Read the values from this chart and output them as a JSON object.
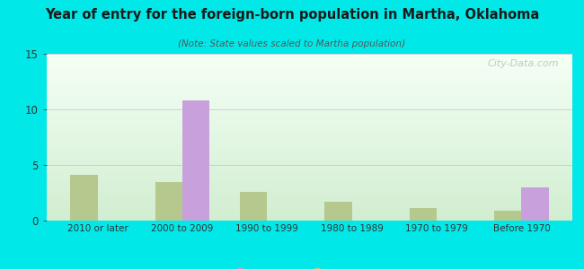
{
  "title": "Year of entry for the foreign-born population in Martha, Oklahoma",
  "subtitle": "(Note: State values scaled to Martha population)",
  "categories": [
    "2010 or later",
    "2000 to 2009",
    "1990 to 1999",
    "1980 to 1989",
    "1970 to 1979",
    "Before 1970"
  ],
  "martha_values": [
    0,
    10.8,
    0,
    0,
    0,
    3.0
  ],
  "oklahoma_values": [
    4.1,
    3.5,
    2.6,
    1.7,
    1.1,
    0.9
  ],
  "martha_color": "#c8a0dc",
  "oklahoma_color": "#b5c98e",
  "background_outer": "#00e8e8",
  "ylim": [
    0,
    15
  ],
  "yticks": [
    0,
    5,
    10,
    15
  ],
  "bar_width": 0.32,
  "watermark": "City-Data.com"
}
